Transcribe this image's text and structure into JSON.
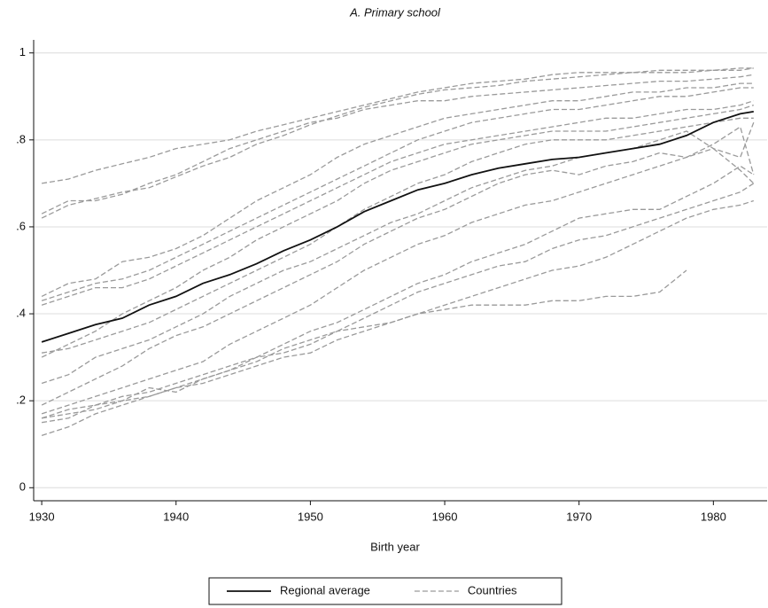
{
  "chart_data": {
    "type": "line",
    "title": "A. Primary school",
    "x_label": "Birth year",
    "x": [
      1930,
      1932,
      1934,
      1936,
      1938,
      1940,
      1942,
      1944,
      1946,
      1948,
      1950,
      1952,
      1954,
      1956,
      1958,
      1960,
      1962,
      1964,
      1966,
      1968,
      1970,
      1972,
      1974,
      1976,
      1978,
      1980,
      1982,
      1983
    ],
    "xlim": [
      1929.4,
      1984
    ],
    "xticks": [
      1930,
      1940,
      1950,
      1960,
      1970,
      1980
    ],
    "ylim": [
      -0.03,
      1.03
    ],
    "yticks": [
      0,
      {
        "value": 0.2,
        "label": ".2"
      },
      {
        "value": 0.4,
        "label": ".4"
      },
      {
        "value": 0.6,
        "label": ".6"
      },
      {
        "value": 0.8,
        "label": ".8"
      },
      1
    ],
    "grid": true,
    "series": [
      {
        "name": "Regional average",
        "color": "#111111",
        "values": [
          0.335,
          0.355,
          0.375,
          0.39,
          0.42,
          0.44,
          0.47,
          0.49,
          0.515,
          0.545,
          0.57,
          0.6,
          0.635,
          0.66,
          0.685,
          0.7,
          0.72,
          0.735,
          0.745,
          0.755,
          0.76,
          0.77,
          0.78,
          0.79,
          0.81,
          0.84,
          0.86,
          0.865
        ]
      },
      {
        "name": "Countries",
        "color": "#9a9a9a",
        "values": [
          [
            0.7,
            0.71,
            0.73,
            0.745,
            0.76,
            0.78,
            0.79,
            0.8,
            0.82,
            0.835,
            0.85,
            0.865,
            0.88,
            0.895,
            0.91,
            0.92,
            0.93,
            0.935,
            0.94,
            0.95,
            0.955,
            0.955,
            0.955,
            0.96,
            0.96,
            0.96,
            0.965,
            0.965
          ],
          [
            0.62,
            0.65,
            0.665,
            0.68,
            0.69,
            0.715,
            0.74,
            0.76,
            0.79,
            0.81,
            0.835,
            0.855,
            0.875,
            0.89,
            0.905,
            0.915,
            0.92,
            0.925,
            0.935,
            0.94,
            0.945,
            0.95,
            0.955,
            0.955,
            0.955,
            0.96,
            0.96,
            0.965
          ],
          [
            0.63,
            0.66,
            0.66,
            0.675,
            0.7,
            0.72,
            0.75,
            0.78,
            0.8,
            0.82,
            0.84,
            0.85,
            0.87,
            0.88,
            0.89,
            0.89,
            0.9,
            0.905,
            0.91,
            0.915,
            0.92,
            0.925,
            0.93,
            0.935,
            0.935,
            0.94,
            0.945,
            0.95
          ],
          [
            0.44,
            0.47,
            0.48,
            0.52,
            0.53,
            0.55,
            0.58,
            0.62,
            0.66,
            0.69,
            0.72,
            0.76,
            0.79,
            0.81,
            0.83,
            0.85,
            0.86,
            0.87,
            0.88,
            0.89,
            0.89,
            0.9,
            0.91,
            0.91,
            0.92,
            0.92,
            0.93,
            0.93
          ],
          [
            0.43,
            0.45,
            0.47,
            0.48,
            0.5,
            0.53,
            0.56,
            0.59,
            0.62,
            0.65,
            0.68,
            0.71,
            0.74,
            0.77,
            0.8,
            0.82,
            0.84,
            0.85,
            0.86,
            0.87,
            0.87,
            0.88,
            0.89,
            0.9,
            0.9,
            0.91,
            0.92,
            0.92
          ],
          [
            0.42,
            0.44,
            0.46,
            0.46,
            0.48,
            0.51,
            0.54,
            0.57,
            0.6,
            0.63,
            0.66,
            0.69,
            0.72,
            0.75,
            0.77,
            0.79,
            0.8,
            0.81,
            0.82,
            0.83,
            0.84,
            0.85,
            0.85,
            0.86,
            0.87,
            0.87,
            0.88,
            0.89
          ],
          [
            0.3,
            0.33,
            0.36,
            0.4,
            0.43,
            0.46,
            0.5,
            0.53,
            0.57,
            0.6,
            0.63,
            0.66,
            0.7,
            0.73,
            0.75,
            0.77,
            0.79,
            0.8,
            0.81,
            0.82,
            0.82,
            0.82,
            0.83,
            0.84,
            0.85,
            0.86,
            0.87,
            0.88
          ],
          [
            0.31,
            0.32,
            0.34,
            0.36,
            0.38,
            0.41,
            0.44,
            0.47,
            0.5,
            0.53,
            0.56,
            0.6,
            0.64,
            0.67,
            0.7,
            0.72,
            0.75,
            0.77,
            0.79,
            0.8,
            0.8,
            0.8,
            0.81,
            0.82,
            0.83,
            0.84,
            0.85,
            0.85
          ],
          [
            0.24,
            0.26,
            0.3,
            0.32,
            0.34,
            0.37,
            0.4,
            0.44,
            0.47,
            0.5,
            0.52,
            0.55,
            0.58,
            0.61,
            0.63,
            0.66,
            0.69,
            0.71,
            0.73,
            0.74,
            0.76,
            0.77,
            0.78,
            0.8,
            0.82,
            0.78,
            0.76,
            0.84
          ],
          [
            0.19,
            0.22,
            0.25,
            0.28,
            0.32,
            0.35,
            0.37,
            0.4,
            0.43,
            0.46,
            0.49,
            0.52,
            0.56,
            0.59,
            0.62,
            0.64,
            0.67,
            0.7,
            0.72,
            0.73,
            0.72,
            0.74,
            0.75,
            0.77,
            0.76,
            0.79,
            0.83,
            0.72
          ],
          [
            0.17,
            0.19,
            0.21,
            0.23,
            0.25,
            0.27,
            0.29,
            0.33,
            0.36,
            0.39,
            0.42,
            0.46,
            0.5,
            0.53,
            0.56,
            0.58,
            0.61,
            0.63,
            0.65,
            0.66,
            0.68,
            0.7,
            0.72,
            0.74,
            0.76,
            0.78,
            0.73,
            0.7
          ],
          [
            0.16,
            0.18,
            0.19,
            0.21,
            0.22,
            0.24,
            0.26,
            0.28,
            0.3,
            0.33,
            0.36,
            0.38,
            0.41,
            0.44,
            0.47,
            0.49,
            0.52,
            0.54,
            0.56,
            0.59,
            0.62,
            0.63,
            0.64,
            0.64,
            0.67,
            0.7,
            0.74,
            0.72
          ],
          [
            0.15,
            0.16,
            0.19,
            0.2,
            0.21,
            0.23,
            0.25,
            0.27,
            0.29,
            0.32,
            0.34,
            0.36,
            0.39,
            0.42,
            0.45,
            0.47,
            0.49,
            0.51,
            0.52,
            0.55,
            0.57,
            0.58,
            0.6,
            0.62,
            0.64,
            0.66,
            0.68,
            0.7
          ],
          [
            0.12,
            0.14,
            0.17,
            0.19,
            0.21,
            0.23,
            0.24,
            0.26,
            0.28,
            0.3,
            0.31,
            0.34,
            0.36,
            0.38,
            0.4,
            0.42,
            0.44,
            0.46,
            0.48,
            0.5,
            0.51,
            0.53,
            0.56,
            0.59,
            0.62,
            0.64,
            0.65,
            0.66
          ],
          [
            0.16,
            0.17,
            0.18,
            0.2,
            0.23,
            0.22,
            0.25,
            0.27,
            0.3,
            0.31,
            0.33,
            0.36,
            0.37,
            0.38,
            0.4,
            0.41,
            0.42,
            0.42,
            0.42,
            0.43,
            0.43,
            0.44,
            0.44,
            0.45,
            0.5,
            null,
            null,
            null
          ]
        ]
      }
    ]
  }
}
